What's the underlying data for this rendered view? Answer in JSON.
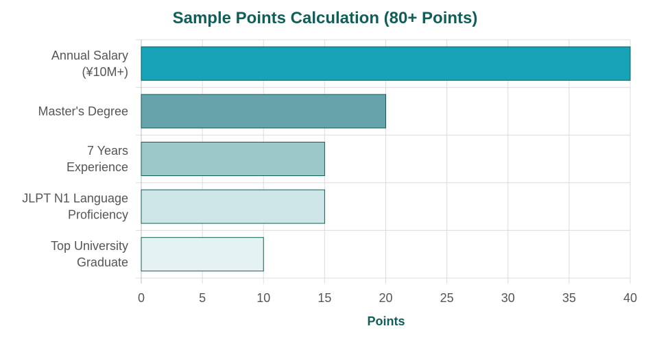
{
  "chart_data": {
    "type": "bar",
    "orientation": "horizontal",
    "title": "Sample Points Calculation (80+ Points)",
    "xlabel": "Points",
    "ylabel": "",
    "categories": [
      [
        "Annual Salary",
        "(¥10M+)"
      ],
      [
        "Master's Degree"
      ],
      [
        "7 Years",
        "Experience"
      ],
      [
        "JLPT N1 Language",
        "Proficiency"
      ],
      [
        "Top University",
        "Graduate"
      ]
    ],
    "values": [
      40,
      20,
      15,
      15,
      10
    ],
    "xlim": [
      0,
      40
    ],
    "xticks": [
      0,
      5,
      10,
      15,
      20,
      25,
      30,
      35,
      40
    ],
    "grid": true,
    "colors": [
      "#17a2b8",
      "#66a3ab",
      "#9cc7c9",
      "#cde5e6",
      "#e5f2f2"
    ],
    "edge_color": "#0f5e5a",
    "title_color": "#0f5e5a"
  }
}
